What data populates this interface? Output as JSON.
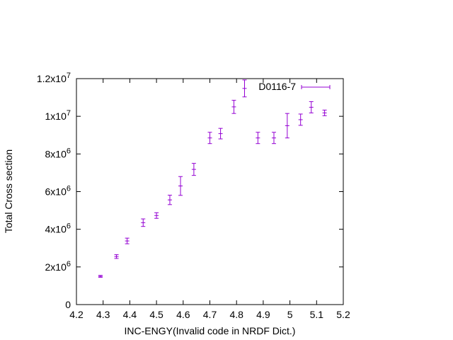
{
  "chart_data": {
    "type": "scatter",
    "xlabel": "INC-ENGY(Invalid code in NRDF Dict.)",
    "ylabel": "Total Cross section",
    "xlim": [
      4.2,
      5.2
    ],
    "ylim": [
      0,
      12000000
    ],
    "x_ticks": [
      "4.2",
      "4.3",
      "4.4",
      "4.5",
      "4.6",
      "4.7",
      "4.8",
      "4.9",
      "5",
      "5.1",
      "5.2"
    ],
    "x_tick_values": [
      4.2,
      4.3,
      4.4,
      4.5,
      4.6,
      4.7,
      4.8,
      4.9,
      5.0,
      5.1,
      5.2
    ],
    "y_ticks": [
      {
        "value": 0,
        "mantissa": "0",
        "exp": ""
      },
      {
        "value": 2000000,
        "mantissa": "2x10",
        "exp": "6"
      },
      {
        "value": 4000000,
        "mantissa": "4x10",
        "exp": "6"
      },
      {
        "value": 6000000,
        "mantissa": "6x10",
        "exp": "6"
      },
      {
        "value": 8000000,
        "mantissa": "8x10",
        "exp": "6"
      },
      {
        "value": 10000000,
        "mantissa": "1x10",
        "exp": "7"
      },
      {
        "value": 12000000,
        "mantissa": "1.2x10",
        "exp": "7"
      }
    ],
    "legend_position": "top-right",
    "series": [
      {
        "name": "D0116-7",
        "color": "#9400d3",
        "points": [
          {
            "x": 4.29,
            "y": 1500000,
            "yerr": 50000
          },
          {
            "x": 4.35,
            "y": 2550000,
            "yerr": 100000
          },
          {
            "x": 4.39,
            "y": 3380000,
            "yerr": 150000
          },
          {
            "x": 4.45,
            "y": 4350000,
            "yerr": 200000
          },
          {
            "x": 4.5,
            "y": 4730000,
            "yerr": 150000
          },
          {
            "x": 4.55,
            "y": 5560000,
            "yerr": 250000
          },
          {
            "x": 4.59,
            "y": 6300000,
            "yerr": 500000
          },
          {
            "x": 4.64,
            "y": 7180000,
            "yerr": 320000
          },
          {
            "x": 4.7,
            "y": 8850000,
            "yerr": 300000
          },
          {
            "x": 4.74,
            "y": 9080000,
            "yerr": 280000
          },
          {
            "x": 4.79,
            "y": 10500000,
            "yerr": 350000
          },
          {
            "x": 4.83,
            "y": 11480000,
            "yerr": 450000
          },
          {
            "x": 4.88,
            "y": 8850000,
            "yerr": 300000
          },
          {
            "x": 4.94,
            "y": 8850000,
            "yerr": 300000
          },
          {
            "x": 4.99,
            "y": 9500000,
            "yerr": 650000
          },
          {
            "x": 5.04,
            "y": 9820000,
            "yerr": 300000
          },
          {
            "x": 5.08,
            "y": 10480000,
            "yerr": 300000
          },
          {
            "x": 5.13,
            "y": 10180000,
            "yerr": 150000
          }
        ]
      }
    ]
  }
}
